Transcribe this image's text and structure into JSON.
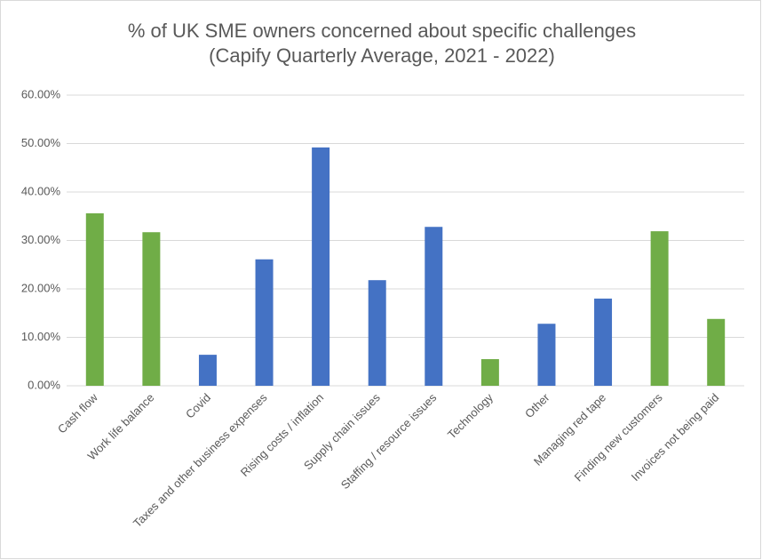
{
  "chart_data": {
    "type": "bar",
    "title": "% of UK SME owners concerned about specific challenges",
    "subtitle": "(Capify Quarterly Average, 2021 - 2022)",
    "categories": [
      "Cash flow",
      "Work life balance",
      "Covid",
      "Taxes and other business expenses",
      "Rising costs / inflation",
      "Supply chain issues",
      "Staffing / resource issues",
      "Technology",
      "Other",
      "Managing red tape",
      "Finding new customers",
      "Invoices not being paid"
    ],
    "values": [
      35.6,
      31.7,
      6.4,
      26.1,
      49.2,
      21.8,
      32.8,
      5.5,
      12.8,
      18.0,
      31.9,
      13.8
    ],
    "colors": [
      "#70ad47",
      "#70ad47",
      "#4472c4",
      "#4472c4",
      "#4472c4",
      "#4472c4",
      "#4472c4",
      "#70ad47",
      "#4472c4",
      "#4472c4",
      "#70ad47",
      "#70ad47"
    ],
    "ylim": [
      0,
      60
    ],
    "yticks": [
      {
        "value": 0,
        "label": "0.00%"
      },
      {
        "value": 10,
        "label": "10.00%"
      },
      {
        "value": 20,
        "label": "20.00%"
      },
      {
        "value": 30,
        "label": "30.00%"
      },
      {
        "value": 40,
        "label": "40.00%"
      },
      {
        "value": 50,
        "label": "50.00%"
      },
      {
        "value": 60,
        "label": "60.00%"
      }
    ],
    "grid": true
  }
}
